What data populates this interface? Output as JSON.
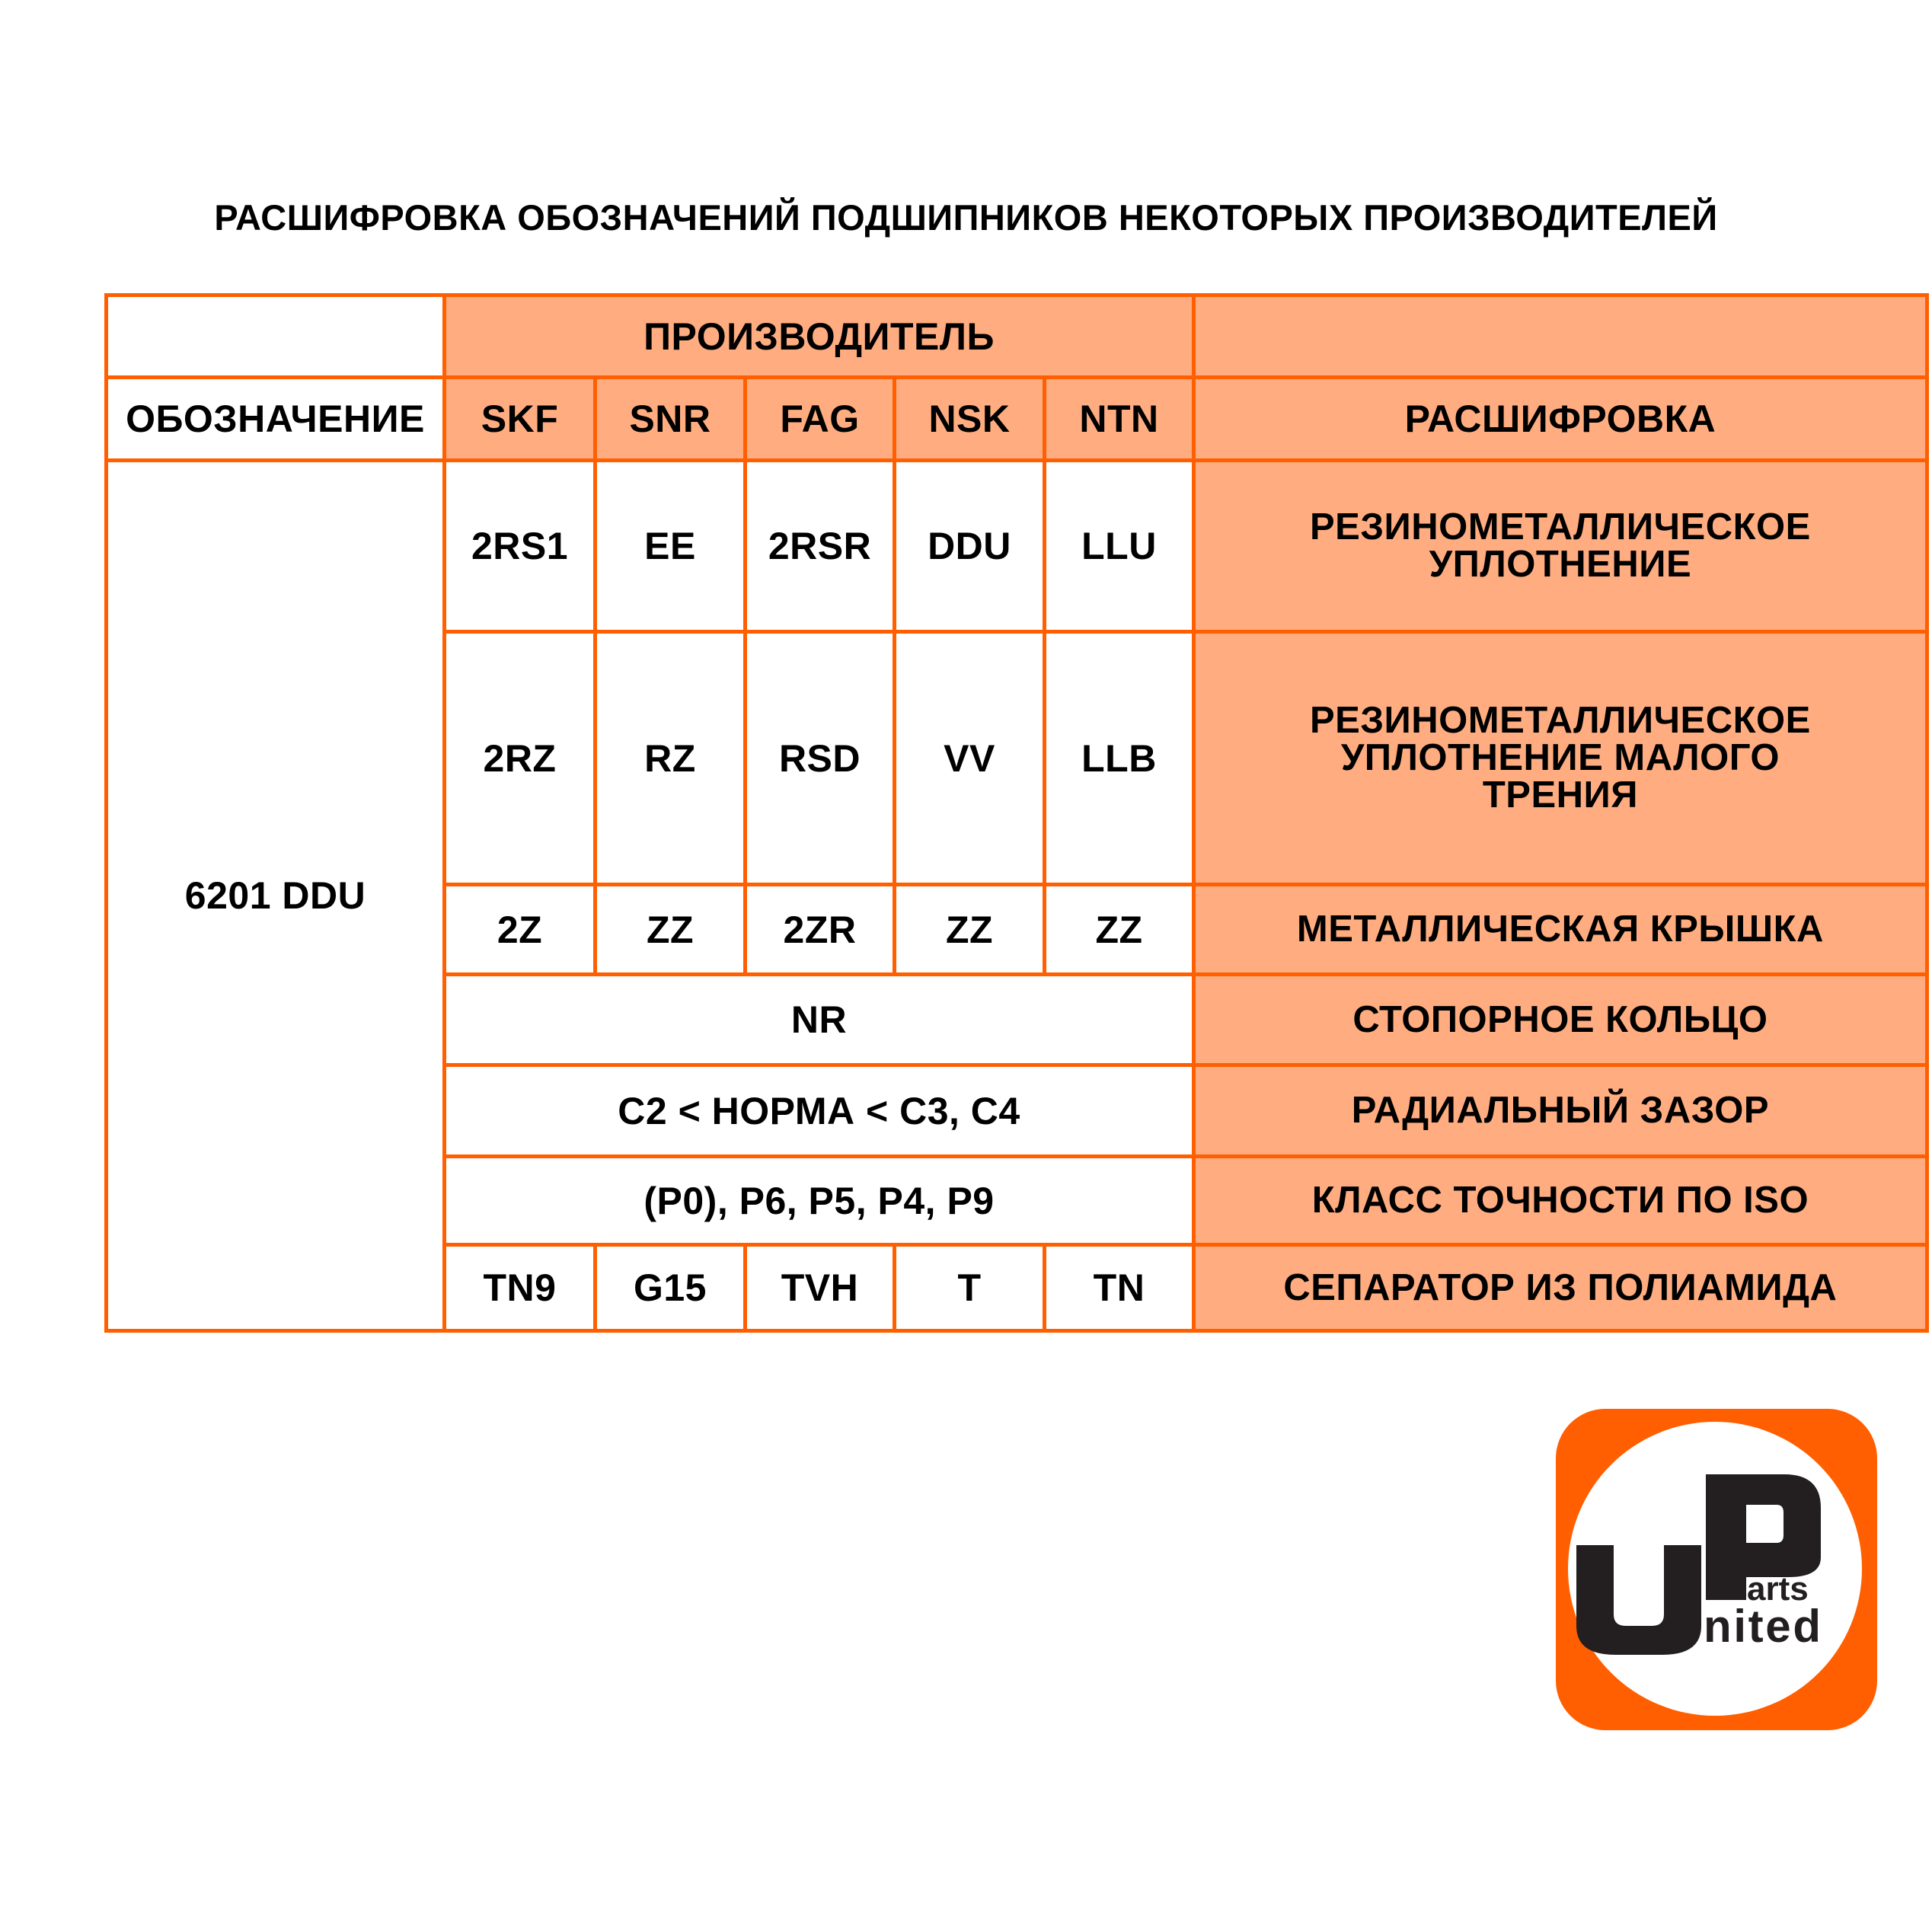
{
  "title": "РАСШИФРОВКА ОБОЗНАЧЕНИЙ ПОДШИПНИКОВ НЕКОТОРЫХ ПРОИЗВОДИТЕЛЕЙ",
  "colors": {
    "border": "#FF5F00",
    "fill": "#FFAD80",
    "logo_text": "#231F20"
  },
  "table": {
    "manufacturer_header": "ПРОИЗВОДИТЕЛЬ",
    "designation_header": "ОБОЗНАЧЕНИЕ",
    "decoding_header": "РАСШИФРОВКА",
    "manufacturers": [
      "SKF",
      "SNR",
      "FAG",
      "NSK",
      "NTN"
    ],
    "designation": "6201 DDU",
    "rows": [
      {
        "codes": [
          "2RS1",
          "EE",
          "2RSR",
          "DDU",
          "LLU"
        ],
        "decoding": "РЕЗИНОМЕТАЛЛИЧЕСКОЕ УПЛОТНЕНИЕ"
      },
      {
        "codes": [
          "2RZ",
          "RZ",
          "RSD",
          "VV",
          "LLB"
        ],
        "decoding": "РЕЗИНОМЕТАЛЛИЧЕСКОЕ УПЛОТНЕНИЕ МАЛОГО ТРЕНИЯ"
      },
      {
        "codes": [
          "2Z",
          "ZZ",
          "2ZR",
          "ZZ",
          "ZZ"
        ],
        "decoding": "МЕТАЛЛИЧЕСКАЯ КРЫШКА"
      },
      {
        "common": "NR",
        "decoding": "СТОПОРНОЕ КОЛЬЦО"
      },
      {
        "common": "C2 < НОРМА < C3, C4",
        "decoding": "РАДИАЛЬНЫЙ ЗАЗОР"
      },
      {
        "common": "(P0), P6, P5, P4, P9",
        "decoding": "КЛАСС ТОЧНОСТИ ПО ISO"
      },
      {
        "codes": [
          "TN9",
          "G15",
          "TVH",
          "T",
          "TN"
        ],
        "decoding": "СЕПАРАТОР ИЗ ПОЛИАМИДА"
      }
    ]
  },
  "logo": {
    "big_u": "U",
    "big_p": "P",
    "arts": "arts",
    "nited": "nited"
  }
}
